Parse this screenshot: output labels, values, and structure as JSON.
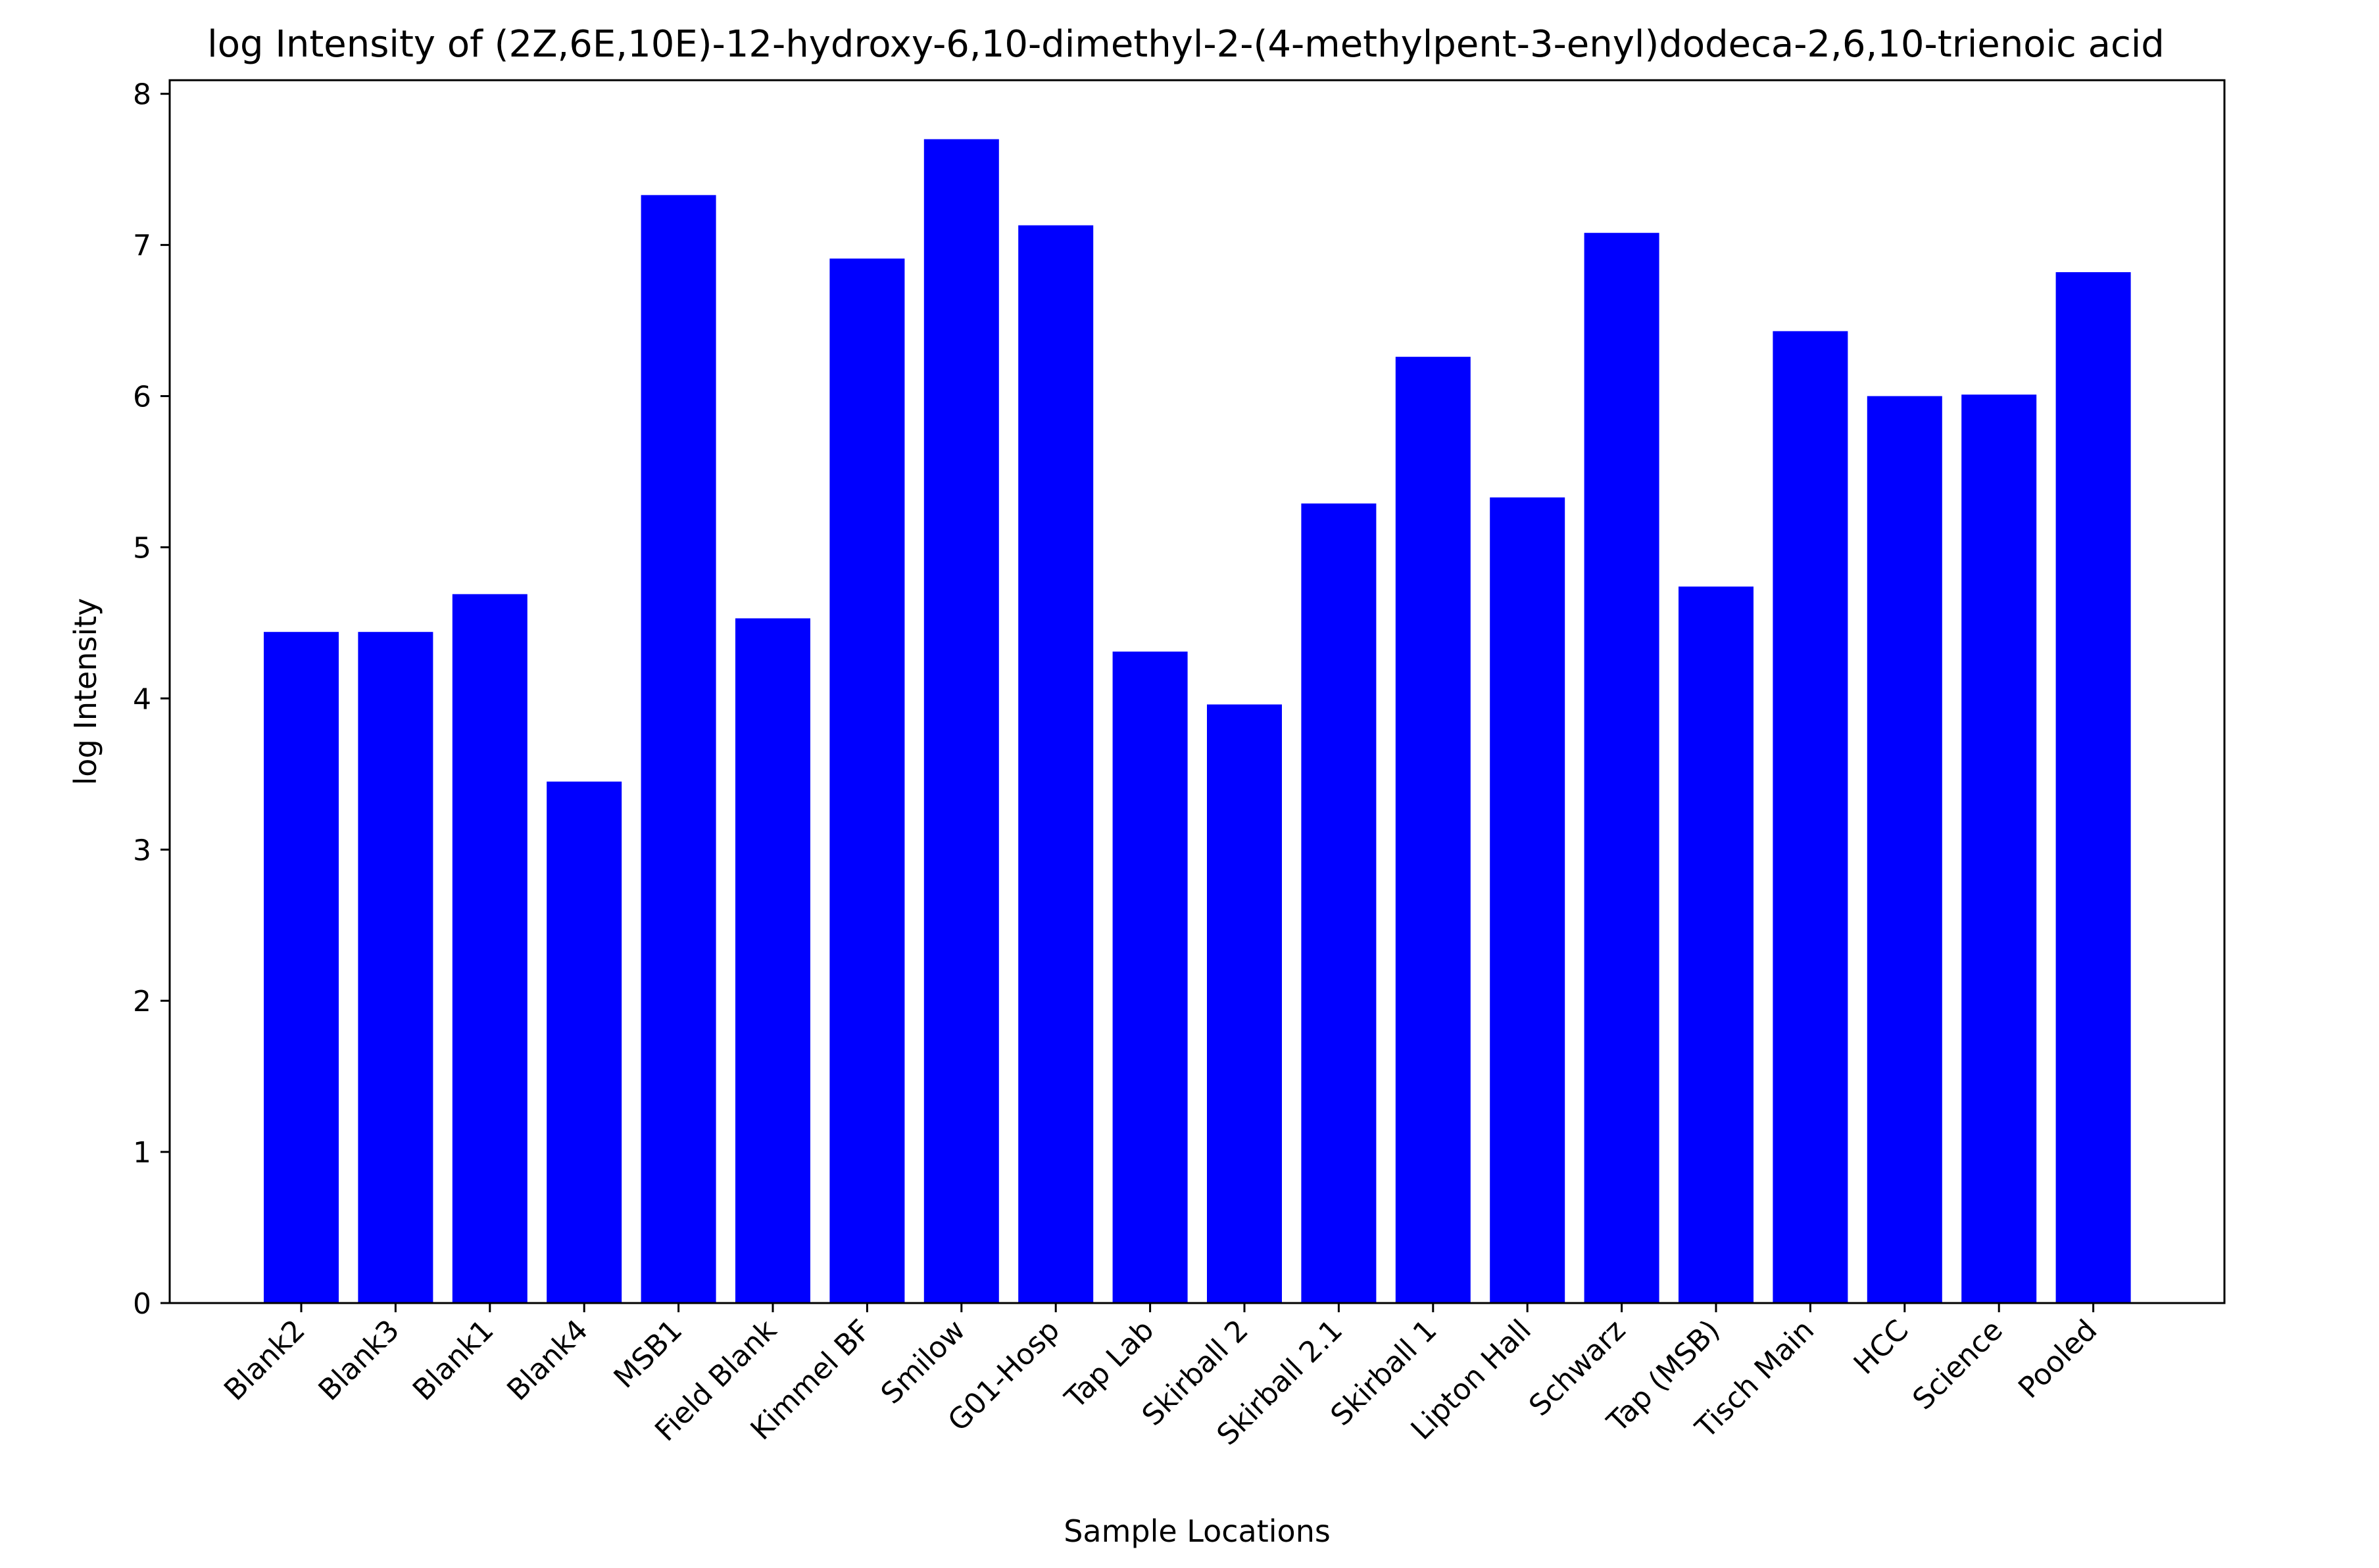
{
  "chart_data": {
    "type": "bar",
    "title": "log Intensity of (2Z,6E,10E)-12-hydroxy-6,10-dimethyl-2-(4-methylpent-3-enyl)dodeca-2,6,10-trienoic acid",
    "xlabel": "Sample Locations",
    "ylabel": "log Intensity",
    "categories": [
      "Blank2",
      "Blank3",
      "Blank1",
      "Blank4",
      "MSB1",
      "Field Blank",
      "Kimmel BF",
      "Smilow",
      "G01-Hosp",
      "Tap Lab",
      "Skirball 2",
      "Skirball 2.1",
      "Skirball 1",
      "Lipton Hall",
      "Schwarz",
      "Tap (MSB)",
      "Tisch Main",
      "HCC",
      "Science",
      "Pooled"
    ],
    "values": [
      4.44,
      4.44,
      4.69,
      3.45,
      7.33,
      4.53,
      6.91,
      7.7,
      7.13,
      4.31,
      3.96,
      5.29,
      6.26,
      5.33,
      7.08,
      4.74,
      6.43,
      6.0,
      6.01,
      6.82
    ],
    "ylim": [
      0,
      8.09
    ],
    "yticks": [
      0,
      1,
      2,
      3,
      4,
      5,
      6,
      7,
      8
    ],
    "tick_labels": [
      "0",
      "1",
      "2",
      "3",
      "4",
      "5",
      "6",
      "7",
      "8"
    ],
    "bar_color": "#0000ff",
    "grid": false,
    "legend": "none"
  }
}
